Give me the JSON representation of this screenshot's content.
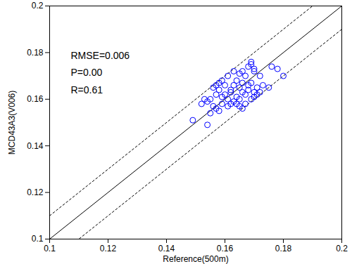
{
  "chart_data": {
    "type": "scatter",
    "x_label": "Reference(500m)",
    "y_label": "MCD43A3(V006)",
    "annotations": [
      "RMSE=0.006",
      "P=0.00",
      "R=0.61"
    ],
    "xlim": [
      0.1,
      0.2
    ],
    "ylim": [
      0.1,
      0.2
    ],
    "xticks": [
      0.1,
      0.12,
      0.14,
      0.16,
      0.18,
      0.2
    ],
    "yticks": [
      0.1,
      0.12,
      0.14,
      0.16,
      0.18,
      0.2
    ],
    "color": "#0000ff",
    "marker": "circle_open",
    "reference_lines": [
      {
        "slope": 1,
        "intercept": 0,
        "line_style": "solid",
        "color": "#000000"
      },
      {
        "slope": 1,
        "intercept": 0.01,
        "line_style": "dashed",
        "color": "#000000"
      },
      {
        "slope": 1,
        "intercept": -0.01,
        "line_style": "dashed",
        "color": "#000000"
      }
    ],
    "x": [
      0.149,
      0.152,
      0.153,
      0.154,
      0.154,
      0.155,
      0.155,
      0.156,
      0.156,
      0.157,
      0.157,
      0.157,
      0.158,
      0.158,
      0.159,
      0.159,
      0.159,
      0.16,
      0.16,
      0.161,
      0.161,
      0.161,
      0.162,
      0.162,
      0.163,
      0.163,
      0.163,
      0.164,
      0.164,
      0.164,
      0.165,
      0.165,
      0.165,
      0.165,
      0.166,
      0.166,
      0.166,
      0.167,
      0.167,
      0.167,
      0.168,
      0.168,
      0.168,
      0.169,
      0.169,
      0.169,
      0.169,
      0.17,
      0.17,
      0.17,
      0.17,
      0.171,
      0.171,
      0.172,
      0.172,
      0.173,
      0.175,
      0.176,
      0.178,
      0.18,
      0.166,
      0.162,
      0.158
    ],
    "values": [
      0.151,
      0.158,
      0.16,
      0.149,
      0.159,
      0.154,
      0.16,
      0.157,
      0.165,
      0.156,
      0.162,
      0.166,
      0.155,
      0.164,
      0.158,
      0.161,
      0.168,
      0.162,
      0.166,
      0.16,
      0.17,
      0.157,
      0.163,
      0.164,
      0.166,
      0.172,
      0.159,
      0.161,
      0.158,
      0.168,
      0.165,
      0.171,
      0.16,
      0.157,
      0.163,
      0.167,
      0.156,
      0.162,
      0.17,
      0.158,
      0.174,
      0.164,
      0.166,
      0.176,
      0.175,
      0.167,
      0.16,
      0.173,
      0.172,
      0.163,
      0.161,
      0.162,
      0.165,
      0.163,
      0.17,
      0.166,
      0.165,
      0.174,
      0.173,
      0.17,
      0.172,
      0.158,
      0.167
    ]
  }
}
